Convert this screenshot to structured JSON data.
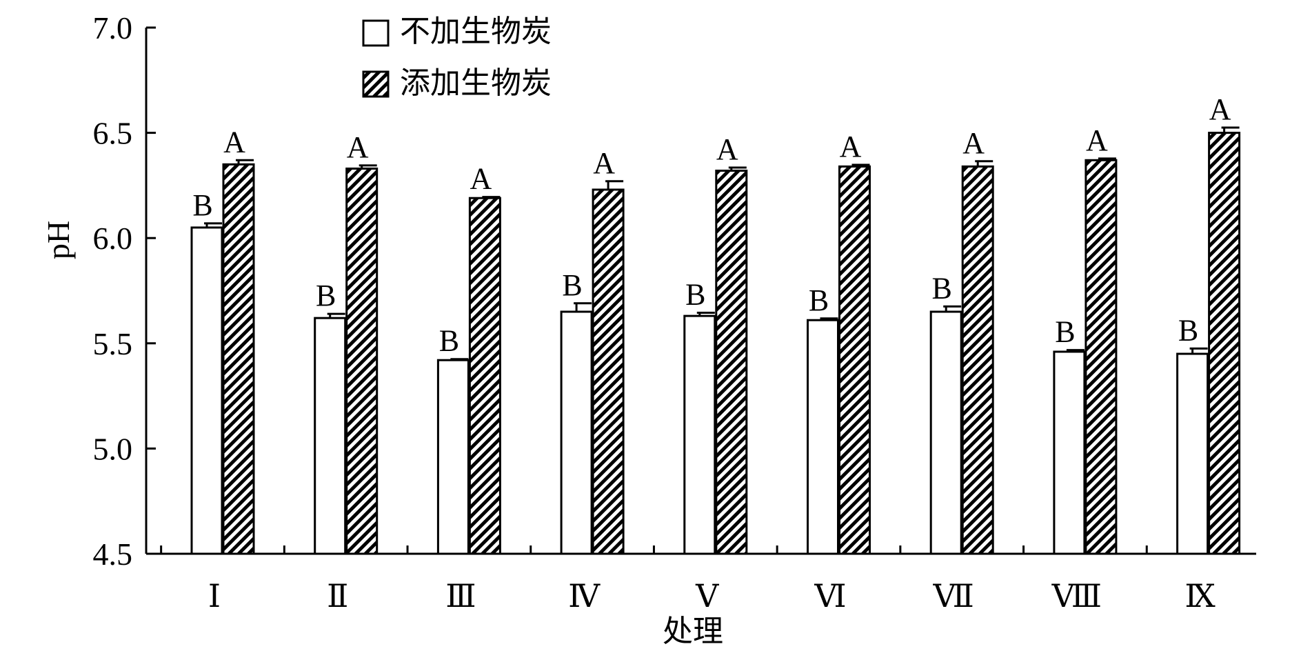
{
  "chart_data": {
    "type": "bar",
    "categories": [
      "Ⅰ",
      "Ⅱ",
      "Ⅲ",
      "Ⅳ",
      "Ⅴ",
      "Ⅵ",
      "Ⅶ",
      "Ⅷ",
      "Ⅸ"
    ],
    "series": [
      {
        "name": "不加生物炭",
        "pattern": "plain",
        "values": [
          6.05,
          5.62,
          5.42,
          5.65,
          5.63,
          5.61,
          5.65,
          5.46,
          5.45
        ],
        "errors": [
          0.02,
          0.02,
          0.005,
          0.04,
          0.015,
          0.008,
          0.025,
          0.008,
          0.025
        ],
        "significance": [
          "B",
          "B",
          "B",
          "B",
          "B",
          "B",
          "B",
          "B",
          "B"
        ]
      },
      {
        "name": "添加生物炭",
        "pattern": "hatched",
        "values": [
          6.35,
          6.33,
          6.19,
          6.23,
          6.32,
          6.34,
          6.34,
          6.37,
          6.5
        ],
        "errors": [
          0.02,
          0.015,
          0.005,
          0.04,
          0.015,
          0.008,
          0.025,
          0.008,
          0.025
        ],
        "significance": [
          "A",
          "A",
          "A",
          "A",
          "A",
          "A",
          "A",
          "A",
          "A"
        ]
      }
    ],
    "title": "",
    "xlabel": "处理",
    "ylabel": "pH",
    "ylim": [
      4.5,
      7.0
    ],
    "yticks": [
      "4.5",
      "5.0",
      "5.5",
      "6.0",
      "6.5",
      "7.0"
    ],
    "grid": false,
    "legend_position": "top-center",
    "colors": {
      "axis": "#000000",
      "bar_fill": "#ffffff",
      "hatch": "#000000"
    }
  }
}
